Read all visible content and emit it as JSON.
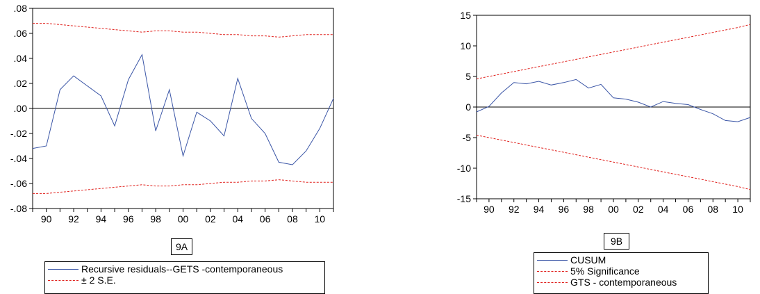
{
  "chart_data": [
    {
      "id": "9A",
      "type": "line",
      "caption": "9A",
      "title": "",
      "xlabel": "",
      "ylabel": "",
      "xlim": [
        1989,
        2011
      ],
      "ylim": [
        -0.08,
        0.08
      ],
      "yticks": [
        0.08,
        0.06,
        0.04,
        0.02,
        0.0,
        -0.02,
        -0.04,
        -0.06,
        -0.08
      ],
      "ytick_labels": [
        ".08",
        ".06",
        ".04",
        ".02",
        ".00",
        "-.02",
        "-.04",
        "-.06",
        "-.08"
      ],
      "xticks": [
        1990,
        1992,
        1994,
        1996,
        1998,
        2000,
        2002,
        2004,
        2006,
        2008,
        2010
      ],
      "xtick_labels": [
        "90",
        "92",
        "94",
        "96",
        "98",
        "00",
        "02",
        "04",
        "06",
        "08",
        "10"
      ],
      "zero_line": 0,
      "legend_position": "bottom",
      "legend": [
        {
          "label": "Recursive residuals--GETS -contemporaneous",
          "style": "solid",
          "color": "#3a55a6"
        },
        {
          "label": "± 2 S.E.",
          "style": "dashed",
          "color": "#e0201c"
        }
      ],
      "x": [
        1989,
        1990,
        1991,
        1992,
        1993,
        1994,
        1995,
        1996,
        1997,
        1998,
        1999,
        2000,
        2001,
        2002,
        2003,
        2004,
        2005,
        2006,
        2007,
        2008,
        2009,
        2010,
        2011
      ],
      "series": [
        {
          "values": [
            -0.032,
            -0.03,
            0.015,
            0.026,
            0.018,
            0.01,
            -0.014,
            0.023,
            0.043,
            -0.018,
            0.015,
            -0.038,
            -0.003,
            -0.01,
            -0.022,
            0.024,
            -0.008,
            -0.02,
            -0.043,
            -0.045,
            -0.034,
            -0.016,
            0.008
          ],
          "color": "#3a55a6",
          "style": "solid"
        },
        {
          "values": [
            0.068,
            0.068,
            0.067,
            0.066,
            0.065,
            0.064,
            0.063,
            0.062,
            0.061,
            0.062,
            0.062,
            0.061,
            0.061,
            0.06,
            0.059,
            0.059,
            0.058,
            0.058,
            0.057,
            0.058,
            0.059,
            0.059,
            0.059
          ],
          "color": "#e0201c",
          "style": "dashed"
        },
        {
          "values": [
            -0.068,
            -0.068,
            -0.067,
            -0.066,
            -0.065,
            -0.064,
            -0.063,
            -0.062,
            -0.061,
            -0.062,
            -0.062,
            -0.061,
            -0.061,
            -0.06,
            -0.059,
            -0.059,
            -0.058,
            -0.058,
            -0.057,
            -0.058,
            -0.059,
            -0.059,
            -0.059
          ],
          "color": "#e0201c",
          "style": "dashed"
        }
      ]
    },
    {
      "id": "9B",
      "type": "line",
      "caption": "9B",
      "title": "",
      "xlabel": "",
      "ylabel": "",
      "xlim": [
        1989,
        2011
      ],
      "ylim": [
        -15,
        15
      ],
      "yticks": [
        15,
        10,
        5,
        0,
        -5,
        -10,
        -15
      ],
      "ytick_labels": [
        "15",
        "10",
        "5",
        "0",
        "-5",
        "-10",
        "-15"
      ],
      "xticks": [
        1990,
        1992,
        1994,
        1996,
        1998,
        2000,
        2002,
        2004,
        2006,
        2008,
        2010
      ],
      "xtick_labels": [
        "90",
        "92",
        "94",
        "96",
        "98",
        "00",
        "02",
        "04",
        "06",
        "08",
        "10"
      ],
      "zero_line": 0,
      "legend_position": "bottom",
      "legend": [
        {
          "label": "CUSUM",
          "style": "solid",
          "color": "#3a55a6"
        },
        {
          "label": "5% Significance",
          "style": "dashed",
          "color": "#e0201c"
        },
        {
          "label": "GTS - contemporaneous",
          "style": "dashed",
          "color": "#e0201c"
        }
      ],
      "x": [
        1989,
        1990,
        1991,
        1992,
        1993,
        1994,
        1995,
        1996,
        1997,
        1998,
        1999,
        2000,
        2001,
        2002,
        2003,
        2004,
        2005,
        2006,
        2007,
        2008,
        2009,
        2010,
        2011
      ],
      "series": [
        {
          "values": [
            -0.8,
            0.1,
            2.3,
            4.0,
            3.8,
            4.2,
            3.6,
            4.0,
            4.5,
            3.1,
            3.7,
            1.5,
            1.3,
            0.8,
            0.0,
            0.9,
            0.6,
            0.4,
            -0.4,
            -1.1,
            -2.2,
            -2.4,
            -1.7
          ],
          "color": "#3a55a6",
          "style": "solid"
        },
        {
          "values": [
            4.6,
            5.0,
            5.4,
            5.8,
            6.2,
            6.6,
            7.0,
            7.4,
            7.8,
            8.2,
            8.6,
            9.0,
            9.4,
            9.8,
            10.2,
            10.6,
            11.0,
            11.4,
            11.8,
            12.2,
            12.6,
            13.0,
            13.5
          ],
          "color": "#e0201c",
          "style": "dashed"
        },
        {
          "values": [
            -4.6,
            -5.0,
            -5.4,
            -5.8,
            -6.2,
            -6.6,
            -7.0,
            -7.4,
            -7.8,
            -8.2,
            -8.6,
            -9.0,
            -9.4,
            -9.8,
            -10.2,
            -10.6,
            -11.0,
            -11.4,
            -11.8,
            -12.2,
            -12.6,
            -13.0,
            -13.5
          ],
          "color": "#e0201c",
          "style": "dashed"
        }
      ]
    }
  ]
}
